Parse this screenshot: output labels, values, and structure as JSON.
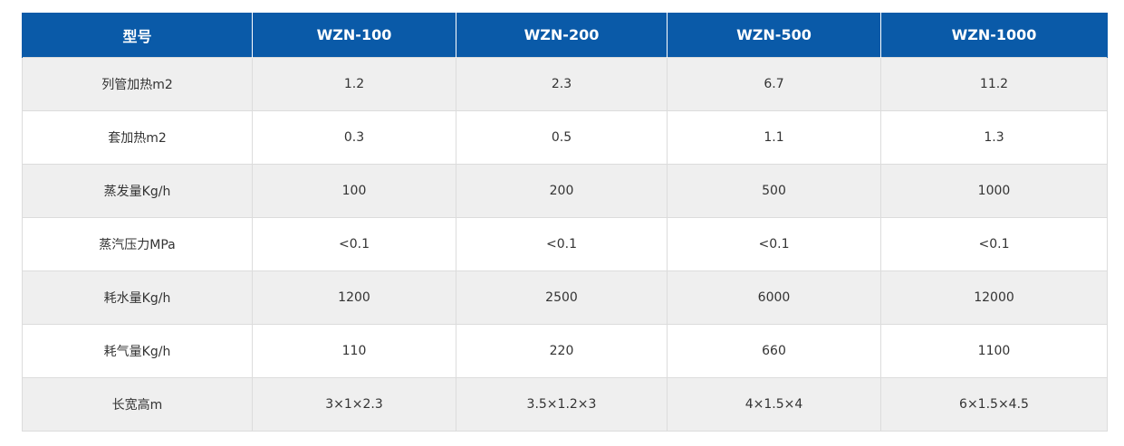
{
  "table": {
    "headers": [
      "型号",
      "WZN-100",
      "WZN-200",
      "WZN-500",
      "WZN-1000"
    ],
    "rows": [
      [
        "列管加热m2",
        "1.2",
        "2.3",
        "6.7",
        "11.2"
      ],
      [
        "套加热m2",
        "0.3",
        "0.5",
        "1.1",
        "1.3"
      ],
      [
        "蒸发量Kg/h",
        "100",
        "200",
        "500",
        "1000"
      ],
      [
        "蒸汽压力MPa",
        "<0.1",
        "<0.1",
        "<0.1",
        "<0.1"
      ],
      [
        "耗水量Kg/h",
        "1200",
        "2500",
        "6000",
        "12000"
      ],
      [
        "耗气量Kg/h",
        "110",
        "220",
        "660",
        "1100"
      ],
      [
        "长宽高m",
        "3×1×2.3",
        "3.5×1.2×3",
        "4×1.5×4",
        "6×1.5×4.5"
      ]
    ]
  },
  "colors": {
    "header_bg": "#0a5aa8",
    "header_text": "#ffffff",
    "row_alt_bg": "#efefef",
    "row_bg": "#ffffff",
    "border": "#dcdcdc",
    "text": "#333333"
  }
}
